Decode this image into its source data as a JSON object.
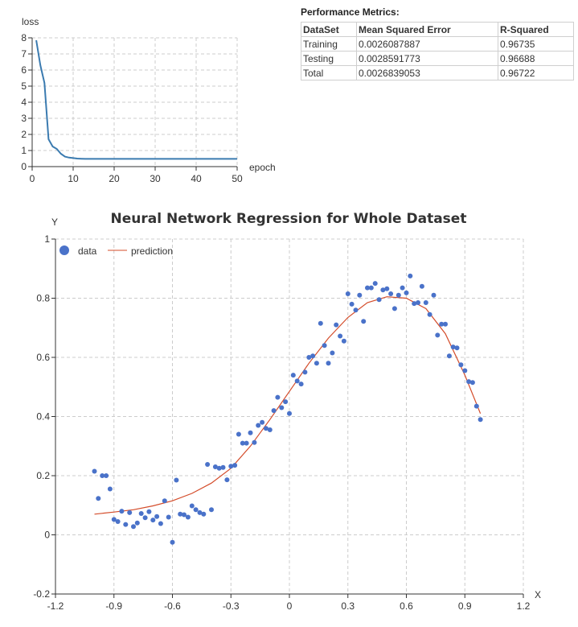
{
  "chart_data": [
    {
      "type": "line",
      "ylabel": "loss",
      "xlabel": "epoch",
      "xlim": [
        0,
        50
      ],
      "ylim": [
        0,
        8
      ],
      "xticks": [
        0,
        10,
        20,
        30,
        40,
        50
      ],
      "yticks": [
        0,
        1,
        2,
        3,
        4,
        5,
        6,
        7,
        8
      ],
      "grid": true,
      "series": [
        {
          "color": "#3b7bb0",
          "x": [
            1,
            2,
            3,
            4,
            5,
            6,
            7,
            8,
            9,
            10,
            11,
            12,
            13,
            14,
            15,
            20,
            25,
            30,
            35,
            40,
            45,
            50
          ],
          "y": [
            7.85,
            6.3,
            5.2,
            1.7,
            1.25,
            1.1,
            0.8,
            0.62,
            0.56,
            0.53,
            0.5,
            0.49,
            0.48,
            0.48,
            0.48,
            0.48,
            0.48,
            0.48,
            0.48,
            0.48,
            0.48,
            0.48
          ]
        }
      ]
    },
    {
      "type": "scatter",
      "title": "Neural Network Regression for Whole Dataset",
      "xlabel": "X",
      "ylabel": "Y",
      "xlim": [
        -1.2,
        1.2
      ],
      "ylim": [
        -0.2,
        1
      ],
      "xticks": [
        -1.2,
        -0.9,
        -0.6,
        -0.3,
        0,
        0.3,
        0.6,
        0.9,
        1.2
      ],
      "yticks": [
        -0.2,
        0,
        0.2,
        0.4,
        0.6,
        0.8,
        1
      ],
      "grid": true,
      "legend_position": "top-left",
      "series": [
        {
          "name": "data",
          "type": "scatter",
          "color": "#4a72c9",
          "points": [
            [
              -1.0,
              0.215
            ],
            [
              -0.98,
              0.123
            ],
            [
              -0.96,
              0.2
            ],
            [
              -0.94,
              0.2
            ],
            [
              -0.92,
              0.155
            ],
            [
              -0.9,
              0.052
            ],
            [
              -0.88,
              0.045
            ],
            [
              -0.86,
              0.08
            ],
            [
              -0.84,
              0.035
            ],
            [
              -0.82,
              0.075
            ],
            [
              -0.8,
              0.028
            ],
            [
              -0.78,
              0.04
            ],
            [
              -0.76,
              0.072
            ],
            [
              -0.74,
              0.058
            ],
            [
              -0.72,
              0.078
            ],
            [
              -0.7,
              0.05
            ],
            [
              -0.68,
              0.062
            ],
            [
              -0.66,
              0.038
            ],
            [
              -0.64,
              0.115
            ],
            [
              -0.62,
              0.06
            ],
            [
              -0.6,
              -0.025
            ],
            [
              -0.58,
              0.185
            ],
            [
              -0.56,
              0.07
            ],
            [
              -0.54,
              0.068
            ],
            [
              -0.52,
              0.06
            ],
            [
              -0.5,
              0.098
            ],
            [
              -0.48,
              0.085
            ],
            [
              -0.46,
              0.075
            ],
            [
              -0.44,
              0.07
            ],
            [
              -0.42,
              0.238
            ],
            [
              -0.4,
              0.085
            ],
            [
              -0.38,
              0.23
            ],
            [
              -0.36,
              0.225
            ],
            [
              -0.34,
              0.228
            ],
            [
              -0.32,
              0.186
            ],
            [
              -0.3,
              0.232
            ],
            [
              -0.28,
              0.235
            ],
            [
              -0.26,
              0.34
            ],
            [
              -0.24,
              0.31
            ],
            [
              -0.22,
              0.31
            ],
            [
              -0.2,
              0.345
            ],
            [
              -0.18,
              0.312
            ],
            [
              -0.16,
              0.37
            ],
            [
              -0.14,
              0.38
            ],
            [
              -0.12,
              0.36
            ],
            [
              -0.1,
              0.355
            ],
            [
              -0.08,
              0.42
            ],
            [
              -0.06,
              0.465
            ],
            [
              -0.04,
              0.43
            ],
            [
              -0.02,
              0.45
            ],
            [
              0.0,
              0.41
            ],
            [
              0.02,
              0.54
            ],
            [
              0.04,
              0.52
            ],
            [
              0.06,
              0.51
            ],
            [
              0.08,
              0.55
            ],
            [
              0.1,
              0.6
            ],
            [
              0.12,
              0.605
            ],
            [
              0.14,
              0.58
            ],
            [
              0.16,
              0.715
            ],
            [
              0.18,
              0.64
            ],
            [
              0.2,
              0.58
            ],
            [
              0.22,
              0.615
            ],
            [
              0.24,
              0.71
            ],
            [
              0.26,
              0.672
            ],
            [
              0.28,
              0.655
            ],
            [
              0.3,
              0.815
            ],
            [
              0.32,
              0.78
            ],
            [
              0.34,
              0.76
            ],
            [
              0.36,
              0.81
            ],
            [
              0.38,
              0.722
            ],
            [
              0.4,
              0.835
            ],
            [
              0.42,
              0.835
            ],
            [
              0.44,
              0.85
            ],
            [
              0.46,
              0.795
            ],
            [
              0.48,
              0.828
            ],
            [
              0.5,
              0.832
            ],
            [
              0.52,
              0.815
            ],
            [
              0.54,
              0.765
            ],
            [
              0.56,
              0.81
            ],
            [
              0.58,
              0.835
            ],
            [
              0.6,
              0.818
            ],
            [
              0.62,
              0.875
            ],
            [
              0.64,
              0.782
            ],
            [
              0.66,
              0.785
            ],
            [
              0.68,
              0.84
            ],
            [
              0.7,
              0.785
            ],
            [
              0.72,
              0.745
            ],
            [
              0.74,
              0.81
            ],
            [
              0.76,
              0.675
            ],
            [
              0.78,
              0.712
            ],
            [
              0.8,
              0.712
            ],
            [
              0.82,
              0.605
            ],
            [
              0.84,
              0.635
            ],
            [
              0.86,
              0.632
            ],
            [
              0.88,
              0.575
            ],
            [
              0.9,
              0.555
            ],
            [
              0.92,
              0.518
            ],
            [
              0.94,
              0.515
            ],
            [
              0.96,
              0.435
            ],
            [
              0.98,
              0.39
            ]
          ]
        },
        {
          "name": "prediction",
          "type": "line",
          "color": "#d44c2a",
          "x": [
            -1.0,
            -0.9,
            -0.8,
            -0.7,
            -0.6,
            -0.5,
            -0.4,
            -0.3,
            -0.2,
            -0.1,
            0.0,
            0.1,
            0.2,
            0.3,
            0.4,
            0.5,
            0.6,
            0.7,
            0.8,
            0.9,
            0.98
          ],
          "y": [
            0.07,
            0.077,
            0.085,
            0.098,
            0.115,
            0.14,
            0.175,
            0.225,
            0.3,
            0.39,
            0.485,
            0.58,
            0.665,
            0.735,
            0.785,
            0.805,
            0.8,
            0.765,
            0.68,
            0.54,
            0.41
          ]
        }
      ]
    }
  ],
  "metrics": {
    "title": "Performance Metrics:",
    "headers": [
      "DataSet",
      "Mean Squared Error",
      "R-Squared"
    ],
    "rows": [
      [
        "Training",
        "0.0026087887",
        "0.96735"
      ],
      [
        "Testing",
        "0.0028591773",
        "0.96688"
      ],
      [
        "Total",
        "0.0026839053",
        "0.96722"
      ]
    ]
  }
}
